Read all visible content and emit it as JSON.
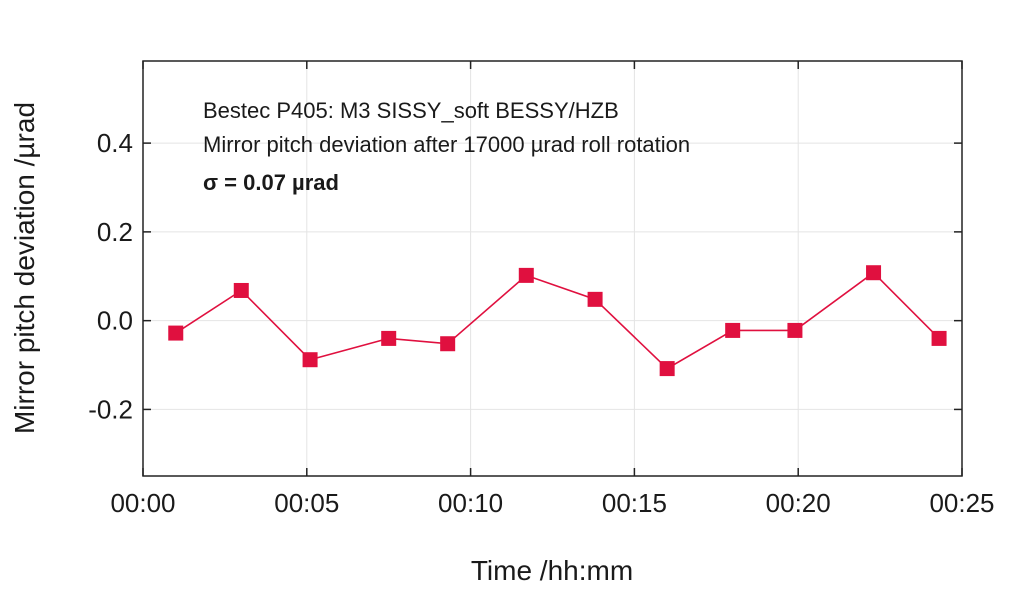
{
  "chart_data": {
    "type": "line",
    "xlabel": "Time /hh:mm",
    "ylabel": "Mirror pitch deviation /µrad",
    "xlim": [
      0,
      25
    ],
    "ylim": [
      -0.35,
      0.585
    ],
    "x_ticks": [
      0,
      5,
      10,
      15,
      20,
      25
    ],
    "x_tick_labels": [
      "00:00",
      "00:05",
      "00:10",
      "00:15",
      "00:20",
      "00:25"
    ],
    "y_ticks": [
      -0.2,
      0.0,
      0.2,
      0.4
    ],
    "y_tick_labels": [
      "-0.2",
      "0.0",
      "0.2",
      "0.4"
    ],
    "grid": true,
    "annotations": [
      "Bestec P405: M3 SISSY_soft BESSY/HZB",
      "Mirror pitch deviation after 17000 µrad roll rotation",
      "σ = 0.07 µrad"
    ],
    "series": [
      {
        "color": "#e0103f",
        "marker": "square",
        "x": [
          1.0,
          3.0,
          5.1,
          7.5,
          9.3,
          11.7,
          13.8,
          16.0,
          18.0,
          19.9,
          22.3,
          24.3
        ],
        "y": [
          -0.028,
          0.068,
          -0.088,
          -0.04,
          -0.052,
          0.102,
          0.048,
          -0.108,
          -0.022,
          -0.022,
          0.108,
          -0.04
        ]
      }
    ]
  }
}
